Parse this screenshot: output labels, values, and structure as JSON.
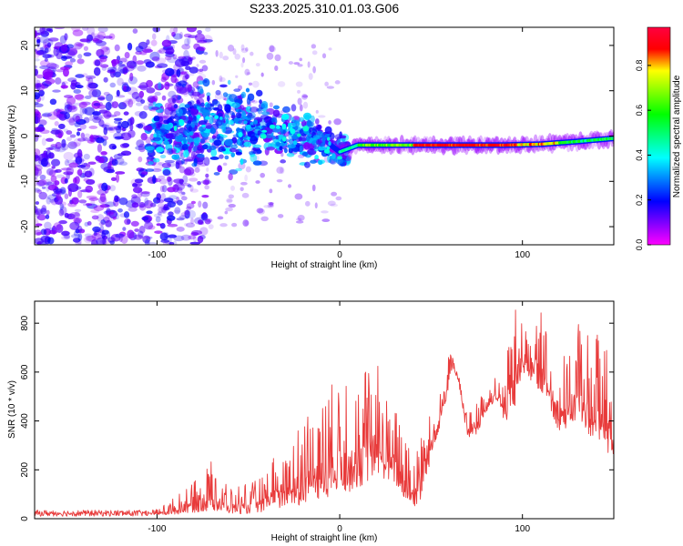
{
  "title": "S233.2025.310.01.03.G06",
  "colors": {
    "snr_line": "#e83a3a",
    "frame": "#000000",
    "background": "#ffffff"
  },
  "chart_data": [
    {
      "type": "heatmap",
      "name": "spectrogram",
      "title": "S233.2025.310.01.03.G06",
      "xlabel": "Height of straight line (km)",
      "ylabel": "Frequency (Hz)",
      "xlim": [
        -167,
        150
      ],
      "ylim": [
        -24,
        24
      ],
      "x_ticks": [
        -100,
        0,
        100
      ],
      "y_ticks": [
        -20,
        -10,
        0,
        10,
        20
      ],
      "colorbar": {
        "label": "Normalized spectral amplitude",
        "range": [
          0.0,
          0.97
        ],
        "ticks": [
          0.0,
          0.2,
          0.4,
          0.6,
          0.8
        ],
        "colormap": "rainbow (magenta-blue-cyan-green-yellow-red)"
      },
      "features": {
        "signal_track_frequency_hz": [
          [
            -100,
            0.5
          ],
          [
            -80,
            2.0
          ],
          [
            -70,
            3.0
          ],
          [
            -60,
            1.5
          ],
          [
            -40,
            1.0
          ],
          [
            -20,
            0.0
          ],
          [
            -5,
            -2.0
          ],
          [
            0,
            -3.5
          ],
          [
            10,
            -2.0
          ],
          [
            30,
            -2.0
          ],
          [
            60,
            -2.0
          ],
          [
            90,
            -2.0
          ],
          [
            110,
            -1.8
          ],
          [
            130,
            -1.2
          ],
          [
            150,
            -0.5
          ]
        ],
        "peak_amplitude_region_km": [
          10,
          150
        ],
        "noise_region_km": [
          -167,
          -100
        ]
      }
    },
    {
      "type": "line",
      "name": "snr",
      "xlabel": "Height of straight line (km)",
      "ylabel": "SNR (10 * v/v)",
      "xlim": [
        -167,
        150
      ],
      "ylim": [
        0,
        890
      ],
      "x_ticks": [
        -100,
        0,
        100
      ],
      "y_ticks": [
        0,
        200,
        400,
        600,
        800
      ],
      "envelope": {
        "x": [
          -167,
          -120,
          -100,
          -90,
          -80,
          -75,
          -70,
          -65,
          -60,
          -55,
          -50,
          -45,
          -40,
          -35,
          -30,
          -25,
          -20,
          -15,
          -10,
          -5,
          0,
          5,
          10,
          15,
          20,
          25,
          30,
          35,
          40,
          45,
          50,
          55,
          60,
          65,
          70,
          75,
          80,
          85,
          90,
          95,
          100,
          105,
          110,
          115,
          120,
          125,
          130,
          135,
          140,
          145,
          150
        ],
        "y": [
          30,
          30,
          40,
          90,
          150,
          180,
          240,
          180,
          120,
          140,
          140,
          160,
          190,
          280,
          260,
          340,
          420,
          440,
          520,
          550,
          560,
          600,
          560,
          640,
          680,
          500,
          500,
          340,
          330,
          380,
          440,
          560,
          690,
          600,
          420,
          480,
          520,
          600,
          590,
          880,
          860,
          720,
          880,
          750,
          720,
          630,
          830,
          760,
          750,
          820,
          440
        ],
        "baseline": {
          "x": [
            -167,
            -120,
            -100,
            -90,
            -80,
            -70,
            -60,
            -50,
            -40,
            -30,
            -20,
            -10,
            0,
            10,
            20,
            30,
            40,
            45,
            50,
            55,
            58,
            60,
            62,
            65,
            70,
            75,
            80,
            85,
            90,
            95,
            100,
            110,
            120,
            130,
            140,
            150
          ],
          "y": [
            15,
            15,
            15,
            15,
            25,
            30,
            20,
            20,
            30,
            40,
            60,
            80,
            100,
            120,
            180,
            140,
            30,
            80,
            250,
            380,
            470,
            560,
            620,
            560,
            320,
            340,
            430,
            480,
            380,
            420,
            600,
            520,
            360,
            380,
            320,
            240
          ]
        }
      }
    }
  ]
}
